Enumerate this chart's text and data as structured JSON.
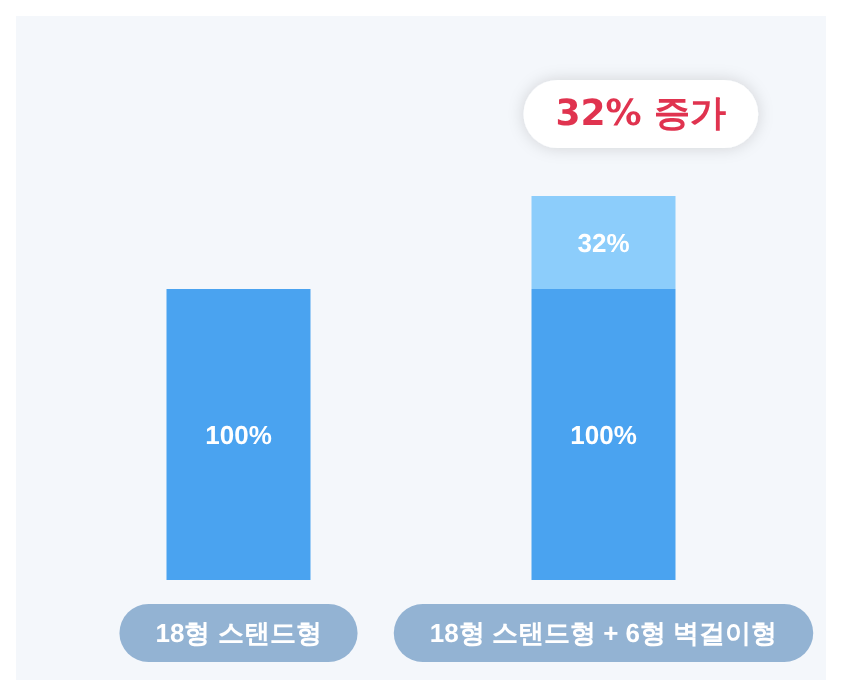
{
  "chart_data": {
    "type": "bar",
    "stacked": true,
    "categories": [
      "18형 스탠드형",
      "18형 스탠드형 + 6형 벽걸이형"
    ],
    "series": [
      {
        "color": "#4aa3f0",
        "values": [
          100,
          100
        ],
        "value_labels": [
          "100%",
          "100%"
        ]
      },
      {
        "color": "#8ccdfb",
        "values": [
          null,
          32
        ],
        "value_labels": [
          null,
          "32%"
        ]
      }
    ],
    "annotations": [
      "32% 증가"
    ]
  }
}
